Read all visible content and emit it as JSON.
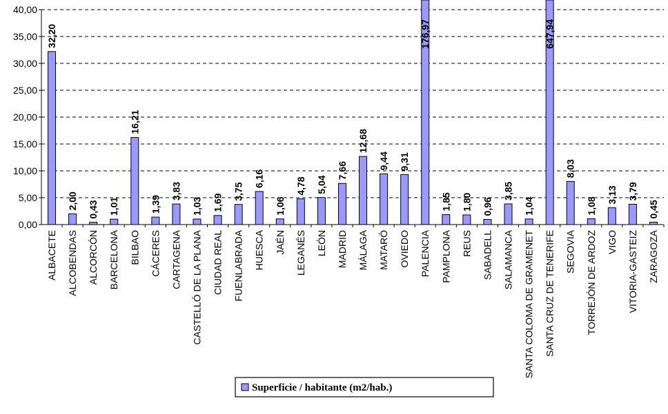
{
  "chart_data": {
    "type": "bar",
    "categories": [
      "ALBACETE",
      "ALCOBENDAS",
      "ALCORCÓN",
      "BARCELONA",
      "BILBAO",
      "CÁCERES",
      "CARTAGENA",
      "CASTELLÓ DE LA PLANA",
      "CIUDAD REAL",
      "FUENLABRADA",
      "HUESCA",
      "JAÉN",
      "LEGANÉS",
      "LEÓN",
      "MADRID",
      "MÁLAGA",
      "MATARÓ",
      "OVIEDO",
      "PALENCIA",
      "PAMPLONA",
      "REUS",
      "SABADELL",
      "SALAMANCA",
      "SANTA COLOMA DE GRAMENET",
      "SANTA CRUZ DE TENERIFE",
      "SEGOVIA",
      "TORREJÓN DE ARDOZ",
      "VIGO",
      "VITORIA-GASTEIZ",
      "ZARAGOZA"
    ],
    "series": [
      {
        "name": "Superficie / habitante (m2/hab.)",
        "values": [
          32.2,
          2.0,
          0.43,
          1.01,
          16.21,
          1.39,
          3.83,
          1.03,
          1.69,
          3.75,
          6.16,
          1.06,
          4.78,
          5.04,
          7.66,
          12.68,
          9.44,
          9.31,
          176.97,
          1.85,
          1.8,
          0.96,
          3.85,
          1.04,
          647.94,
          8.03,
          1.08,
          3.13,
          3.79,
          0.45
        ],
        "data_labels": [
          "32,20",
          "2,00",
          "0,43",
          "1,01",
          "16,21",
          "1,39",
          "3,83",
          "1,03",
          "1,69",
          "3,75",
          "6,16",
          "1,06",
          "4,78",
          "5,04",
          "7,66",
          "12,68",
          "9,44",
          "9,31",
          "176,97",
          "1,85",
          "1,80",
          "0,96",
          "3,85",
          "1,04",
          "647,94",
          "8,03",
          "1,08",
          "3,13",
          "3,79",
          "0,45"
        ]
      }
    ],
    "ylim": [
      0,
      40
    ],
    "yticks": [
      "0,00",
      "5,00",
      "10,00",
      "15,00",
      "20,00",
      "25,00",
      "30,00",
      "35,00",
      "40,00"
    ],
    "ytick_values": [
      0,
      5,
      10,
      15,
      20,
      25,
      30,
      35,
      40
    ],
    "grid": "dashed horizontal",
    "legend_position": "bottom-center",
    "colors": {
      "bar_fill": "#9999ff",
      "bar_stroke": "#000000",
      "grid": "#000000"
    }
  }
}
